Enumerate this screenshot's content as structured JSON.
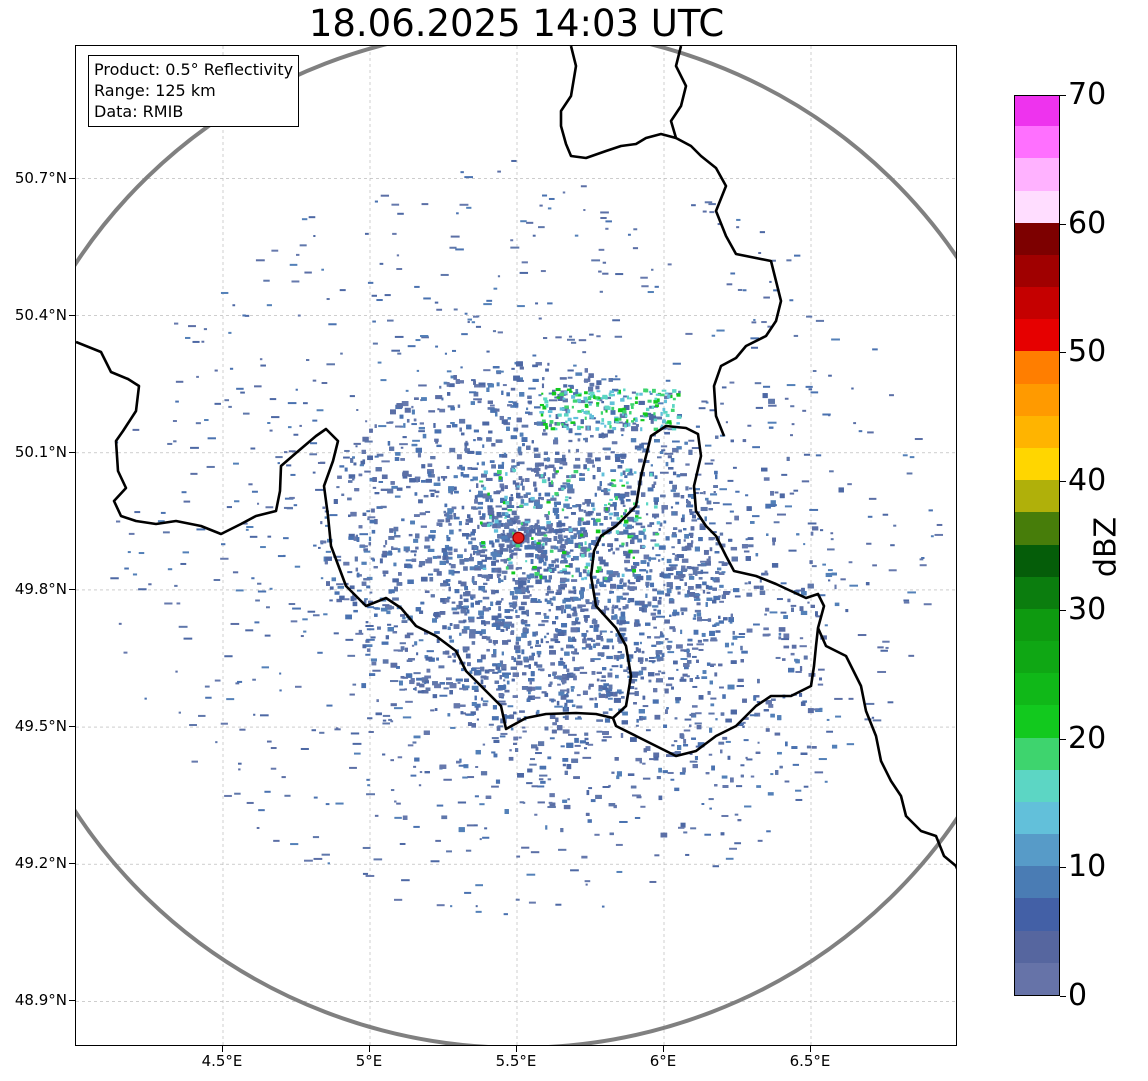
{
  "title": "18.06.2025 14:03 UTC",
  "info_box": {
    "product": "Product: 0.5° Reflectivity",
    "range": "Range: 125 km",
    "data": "Data: RMIB"
  },
  "map": {
    "lon_range": [
      4.0,
      7.0
    ],
    "lat_range": [
      48.8,
      50.99
    ],
    "lon_ticks": [
      {
        "value": 4.5,
        "label": "4.5°E"
      },
      {
        "value": 5.0,
        "label": "5°E"
      },
      {
        "value": 5.5,
        "label": "5.5°E"
      },
      {
        "value": 6.0,
        "label": "6°E"
      },
      {
        "value": 6.5,
        "label": "6.5°E"
      }
    ],
    "lat_ticks": [
      {
        "value": 50.7,
        "label": "50.7°N"
      },
      {
        "value": 50.4,
        "label": "50.4°N"
      },
      {
        "value": 50.1,
        "label": "50.1°N"
      },
      {
        "value": 49.8,
        "label": "49.8°N"
      },
      {
        "value": 49.5,
        "label": "49.5°N"
      },
      {
        "value": 49.2,
        "label": "49.2°N"
      },
      {
        "value": 48.9,
        "label": "48.9°N"
      }
    ],
    "radar_site": {
      "lon": 5.505,
      "lat": 49.914,
      "color": "#e8201a"
    },
    "range_ring_color": "#808080",
    "border_color": "#000000",
    "gridlines": true
  },
  "colorbar": {
    "label": "dBZ",
    "min": 0,
    "max": 70,
    "tick_labels": [
      "0",
      "10",
      "20",
      "30",
      "40",
      "50",
      "60",
      "70"
    ],
    "colors": [
      "#6673a8",
      "#56669f",
      "#4360a6",
      "#4a7cb4",
      "#579bc8",
      "#62c0da",
      "#5cd6c4",
      "#3ed46e",
      "#12c91e",
      "#10b818",
      "#0fa714",
      "#0e9a10",
      "#0b7d0e",
      "#055d09",
      "#477d0a",
      "#b0b00a",
      "#ffd600",
      "#ffb400",
      "#ff9a00",
      "#ff7e00",
      "#e60000",
      "#c50000",
      "#a00000",
      "#7d0000",
      "#ffddff",
      "#ffb2ff",
      "#ff70ff",
      "#ee33ee"
    ]
  }
}
